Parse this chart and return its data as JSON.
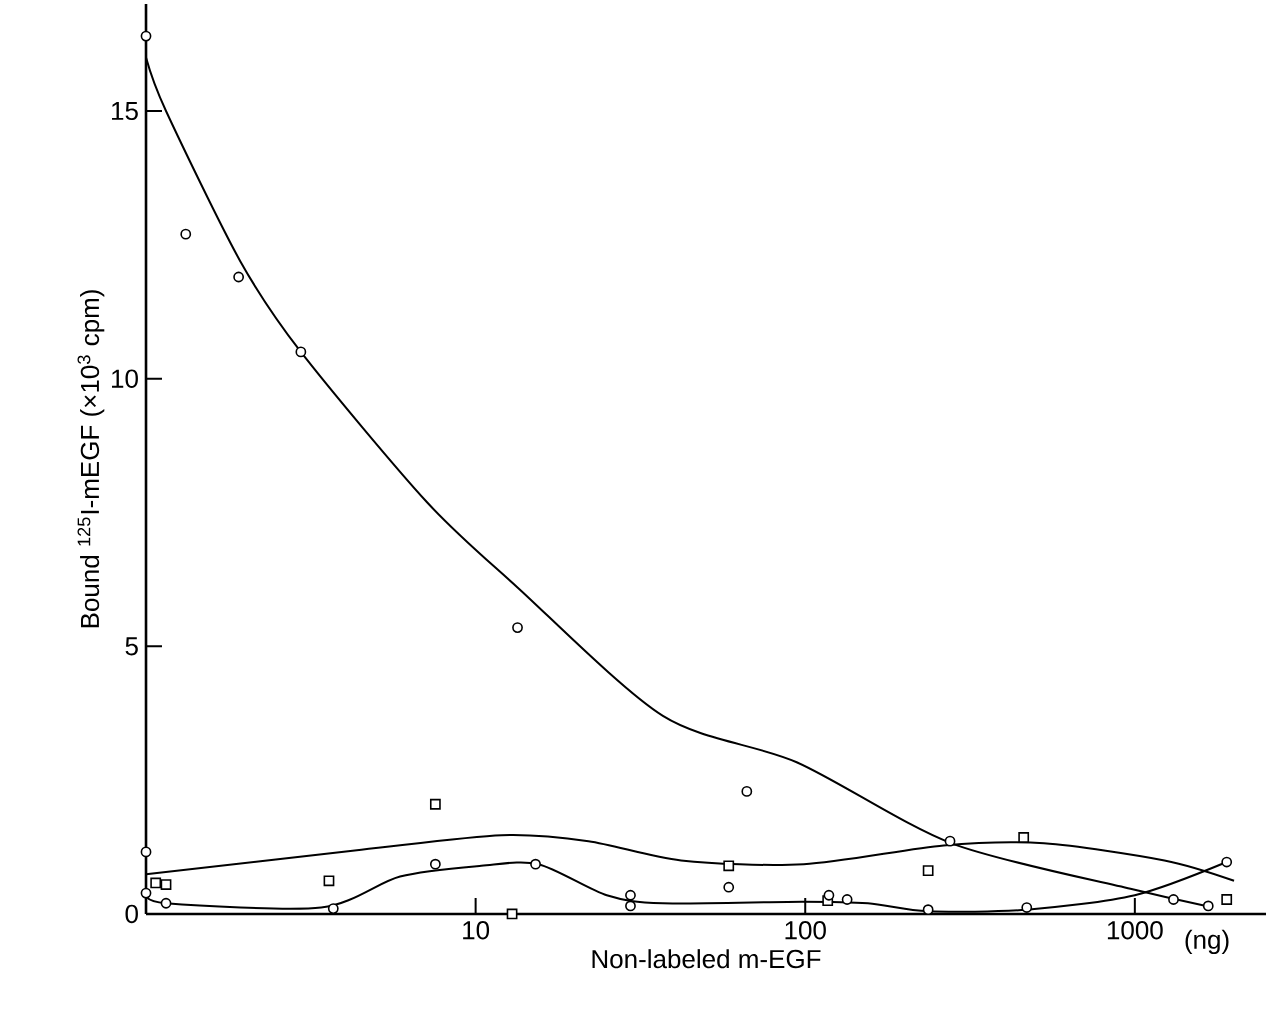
{
  "chart_data": {
    "type": "scatter",
    "xlabel": "Non-labeled m-EGF",
    "ylabel": "Bound $^{125}$I-mEGF (×10$^{3}$ cpm)",
    "log": "x",
    "xlim": [
      1,
      2500
    ],
    "ylim": [
      0,
      17
    ],
    "xticks": [
      10,
      100,
      1000
    ],
    "yticks": [
      0,
      5,
      10,
      15
    ],
    "annotations": [
      "(ng)"
    ],
    "series": [
      {
        "marker": "circle",
        "color": "#000000",
        "x": [
          1,
          1.32,
          1.91,
          2.95,
          13.4,
          66.5,
          275,
          1310,
          1670,
          1,
          29.5,
          134
        ],
        "values": [
          16.4,
          12.7,
          11.9,
          10.5,
          5.35,
          2.29,
          1.36,
          0.27,
          0.15,
          1.16,
          0.35,
          0.27
        ]
      },
      {
        "marker": "square",
        "color": "#000000",
        "x": [
          1.07,
          1.15,
          3.59,
          7.55,
          12.9,
          58.6,
          117,
          236,
          460,
          1900
        ],
        "values": [
          0.58,
          0.55,
          0.62,
          2.05,
          0.0,
          0.9,
          0.25,
          0.81,
          1.43,
          0.27
        ]
      },
      {
        "marker": "circle",
        "color": "#000000",
        "x": [
          1,
          1.15,
          3.7,
          7.55,
          15.2,
          29.5,
          58.6,
          118,
          236,
          470,
          1900
        ],
        "values": [
          0.39,
          0.2,
          0.1,
          0.93,
          0.93,
          0.15,
          0.5,
          0.35,
          0.08,
          0.12,
          0.97
        ]
      },
      {
        "type": "line",
        "marker": "none",
        "color": "#000000",
        "x": [
          1,
          1.15,
          1.93,
          2.95,
          7.1,
          13.4,
          37,
          94.6,
          278,
          970,
          1620
        ],
        "values": [
          16.0,
          15.0,
          12.2,
          10.5,
          7.7,
          6.1,
          3.7,
          2.83,
          1.32,
          0.47,
          0.16
        ]
      },
      {
        "type": "line",
        "marker": "none",
        "color": "#000000",
        "x": [
          1,
          4.5,
          12,
          22,
          42,
          99,
          263,
          530,
          1230,
          2000
        ],
        "values": [
          0.74,
          1.2,
          1.47,
          1.36,
          1.0,
          0.93,
          1.28,
          1.32,
          1.0,
          0.62
        ]
      },
      {
        "type": "line",
        "marker": "none",
        "color": "#000000",
        "x": [
          1,
          1.15,
          3.4,
          5.9,
          10.4,
          15.5,
          25,
          37,
          98,
          155,
          236,
          470,
          1000,
          1900
        ],
        "values": [
          0.39,
          0.2,
          0.12,
          0.7,
          0.9,
          0.93,
          0.35,
          0.2,
          0.23,
          0.2,
          0.05,
          0.08,
          0.35,
          0.97
        ]
      }
    ]
  }
}
